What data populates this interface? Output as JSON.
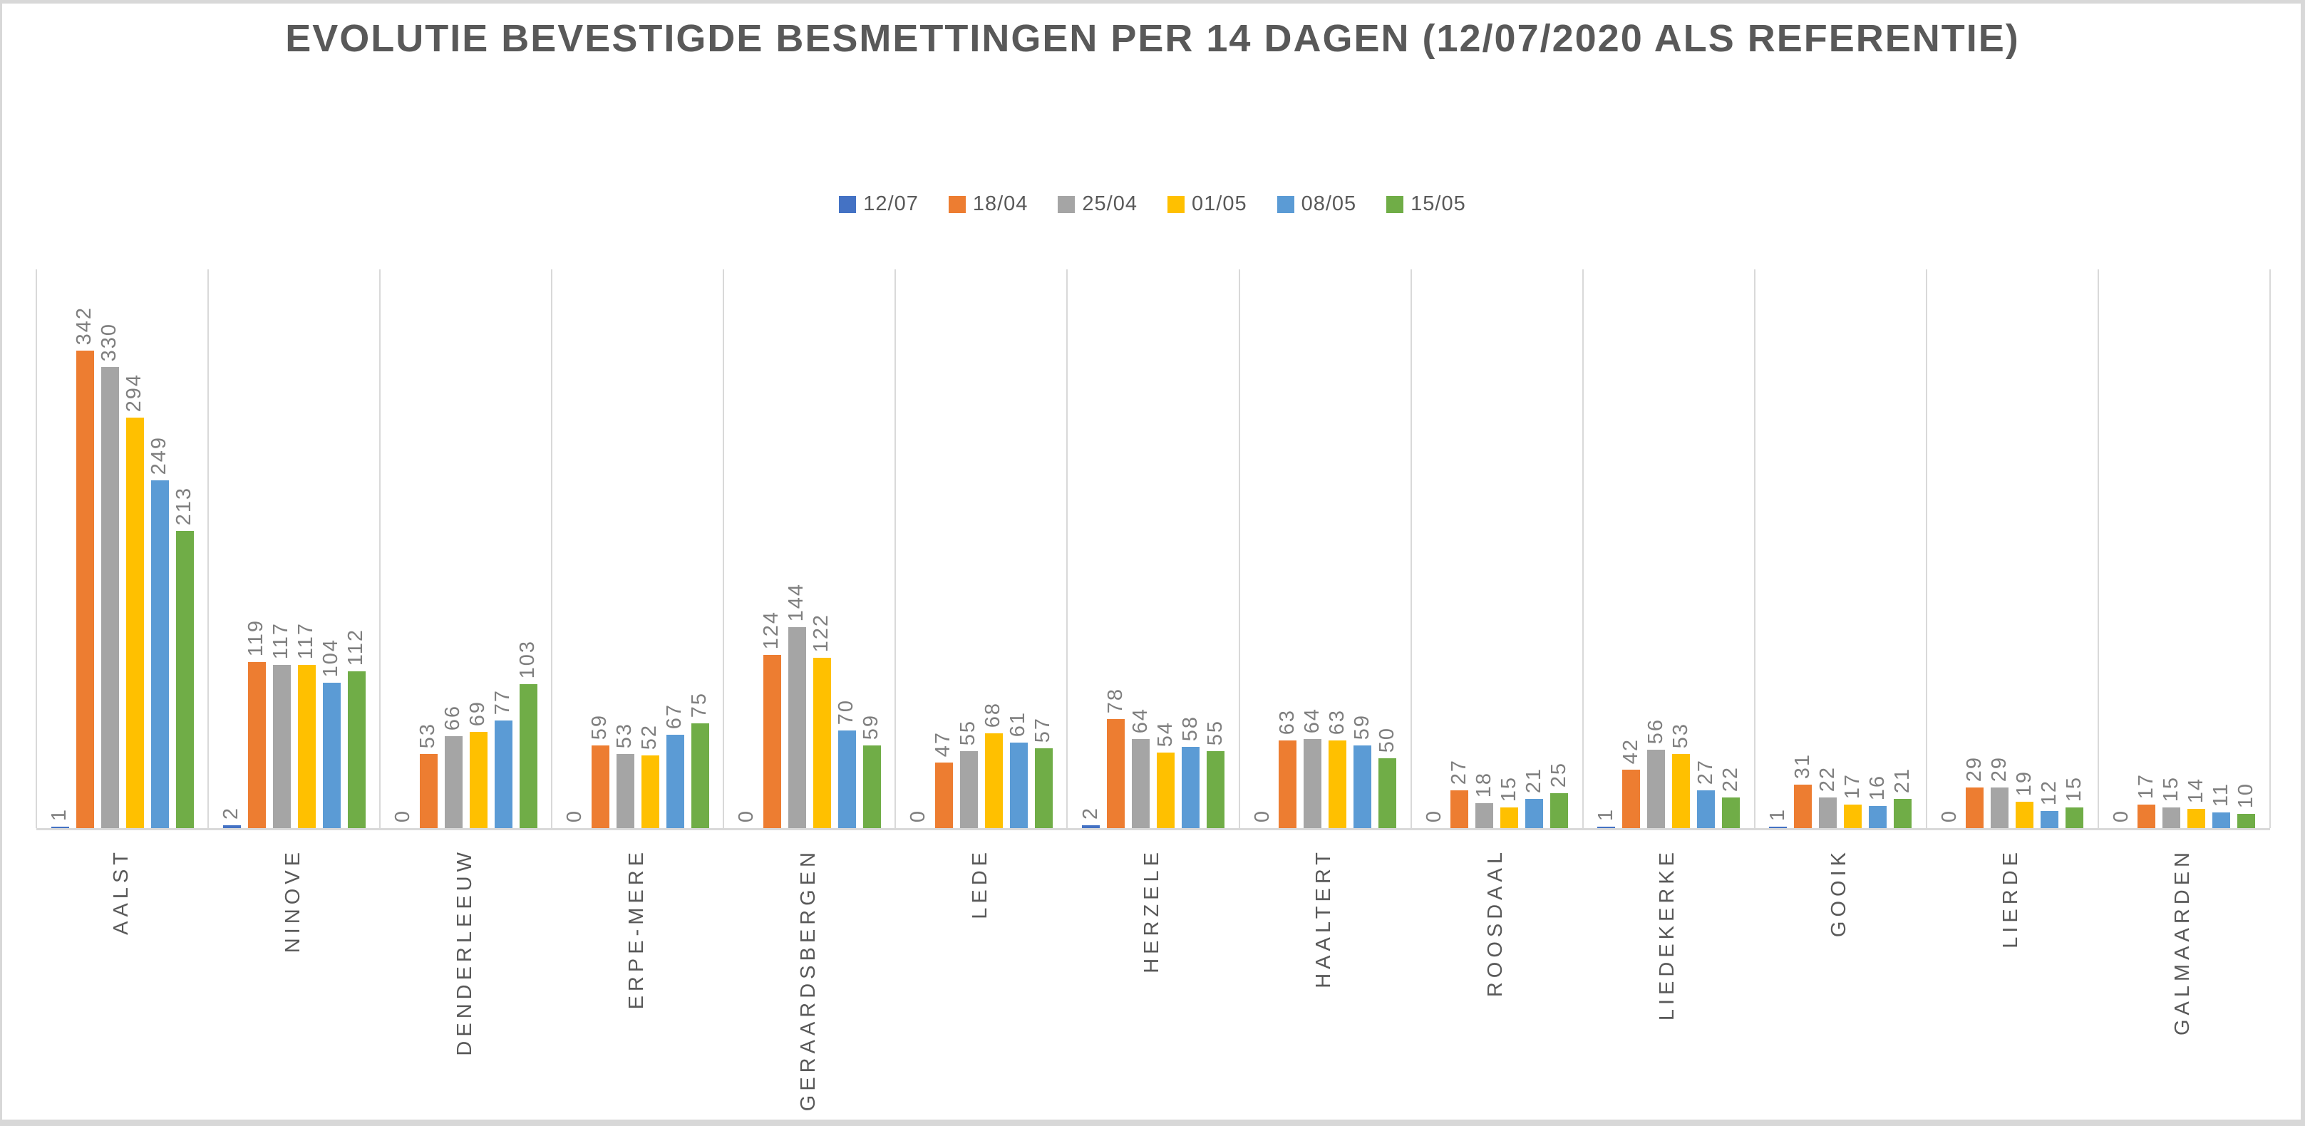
{
  "chart_data": {
    "type": "bar",
    "title": "EVOLUTIE BEVESTIGDE BESMETTINGEN PER 14 DAGEN (12/07/2020 ALS REFERENTIE)",
    "categories": [
      "AALST",
      "NINOVE",
      "DENDERLEEUW",
      "ERPE-MERE",
      "GERAARDSBERGEN",
      "LEDE",
      "HERZELE",
      "HAALTERT",
      "ROOSDAAL",
      "LIEDEKERKE",
      "GOOIK",
      "LIERDE",
      "GALMAARDEN"
    ],
    "series": [
      {
        "name": "12/07",
        "color": "#4472C4",
        "values": [
          1,
          2,
          0,
          0,
          0,
          0,
          2,
          0,
          0,
          1,
          1,
          0,
          0
        ]
      },
      {
        "name": "18/04",
        "color": "#ED7D31",
        "values": [
          342,
          119,
          53,
          59,
          124,
          47,
          78,
          63,
          27,
          42,
          31,
          29,
          17
        ]
      },
      {
        "name": "25/04",
        "color": "#A5A5A5",
        "values": [
          330,
          117,
          66,
          53,
          144,
          55,
          64,
          64,
          18,
          56,
          22,
          29,
          15
        ]
      },
      {
        "name": "01/05",
        "color": "#FFC000",
        "values": [
          294,
          117,
          69,
          52,
          122,
          68,
          54,
          63,
          15,
          53,
          17,
          19,
          14
        ]
      },
      {
        "name": "08/05",
        "color": "#5B9BD5",
        "values": [
          249,
          104,
          77,
          67,
          70,
          61,
          58,
          59,
          21,
          27,
          16,
          12,
          11
        ]
      },
      {
        "name": "15/05",
        "color": "#70AD47",
        "values": [
          213,
          112,
          103,
          75,
          59,
          57,
          55,
          50,
          25,
          22,
          21,
          15,
          10
        ]
      }
    ],
    "ylim": [
      0,
      400
    ],
    "xlabel": "",
    "ylabel": "",
    "grid": "vertical category separators only",
    "legend_position": "top-center",
    "data_labels": "value above each bar, rotated 90deg, read bottom-to-top",
    "category_labels": "rotated 90deg, read bottom-to-top, below axis"
  },
  "colors": {
    "title_text": "#595959",
    "category_label_text": "#595959",
    "data_label_text": "#7f7f7f",
    "gridline": "#d9d9d9",
    "axis_line": "#d9d9d9",
    "background": "#ffffff",
    "window_edge": "#d8d8d8"
  }
}
